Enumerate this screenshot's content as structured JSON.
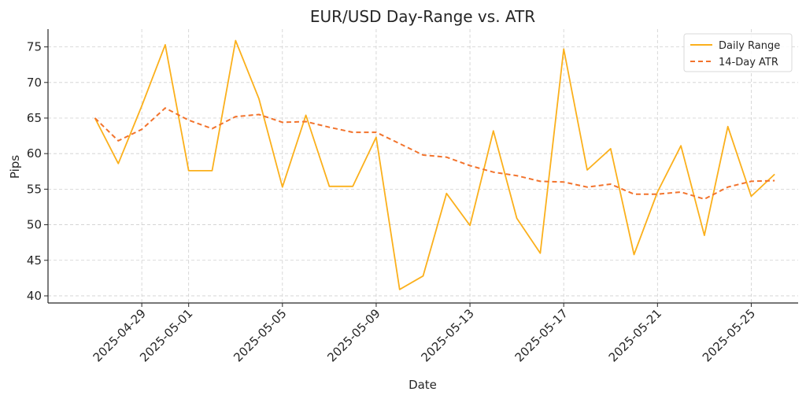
{
  "chart_data": {
    "type": "line",
    "title": "EUR/USD Day-Range vs. ATR",
    "xlabel": "Date",
    "ylabel": "Pips",
    "grid": true,
    "legend_position": "top-right",
    "xlim": [
      "2025-04-25",
      "2025-05-27"
    ],
    "ylim": [
      39,
      77.5
    ],
    "y_ticks": [
      40,
      45,
      50,
      55,
      60,
      65,
      70,
      75
    ],
    "x_ticks": [
      "2025-04-29",
      "2025-05-01",
      "2025-05-05",
      "2025-05-09",
      "2025-05-13",
      "2025-05-17",
      "2025-05-21",
      "2025-05-25"
    ],
    "x": [
      "2025-04-27",
      "2025-04-28",
      "2025-04-29",
      "2025-04-30",
      "2025-05-01",
      "2025-05-02",
      "2025-05-03",
      "2025-05-04",
      "2025-05-05",
      "2025-05-06",
      "2025-05-07",
      "2025-05-08",
      "2025-05-09",
      "2025-05-10",
      "2025-05-11",
      "2025-05-12",
      "2025-05-13",
      "2025-05-14",
      "2025-05-15",
      "2025-05-16",
      "2025-05-17",
      "2025-05-18",
      "2025-05-19",
      "2025-05-20",
      "2025-05-21",
      "2025-05-22",
      "2025-05-23",
      "2025-05-24",
      "2025-05-25",
      "2025-05-26"
    ],
    "series": [
      {
        "name": "Daily Range",
        "color": "#fbb01c",
        "style": "solid",
        "values": [
          65.0,
          58.6,
          66.7,
          75.3,
          57.6,
          57.6,
          75.9,
          67.7,
          55.3,
          65.4,
          55.4,
          55.4,
          62.3,
          40.9,
          42.8,
          54.4,
          49.9,
          63.2,
          50.9,
          46.0,
          74.7,
          57.7,
          60.7,
          45.8,
          54.6,
          61.1,
          48.5,
          63.8,
          54.0,
          57.1
        ]
      },
      {
        "name": "14-Day ATR",
        "color": "#f2732c",
        "style": "dashed",
        "values": [
          65.0,
          61.8,
          63.4,
          66.4,
          64.7,
          63.5,
          65.2,
          65.5,
          64.4,
          64.5,
          63.7,
          63.0,
          63.0,
          61.4,
          59.8,
          59.5,
          58.3,
          57.4,
          56.9,
          56.1,
          56.0,
          55.3,
          55.7,
          54.3,
          54.3,
          54.6,
          53.6,
          55.3,
          56.1,
          56.2
        ]
      }
    ]
  }
}
